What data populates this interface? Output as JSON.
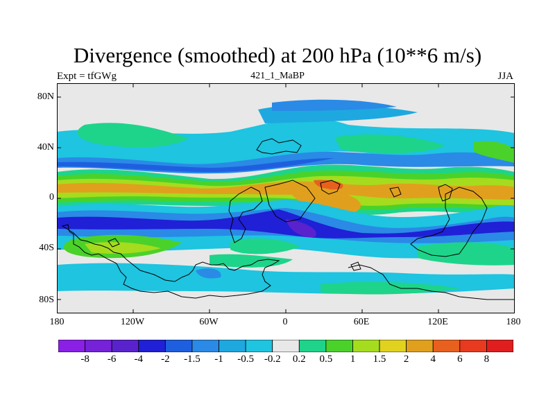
{
  "title": "Divergence (smoothed) at 200 hPa (10**6 m/s)",
  "subtitle_left": "Expt = tfGWg",
  "subtitle_center": "421_1_MaBP",
  "subtitle_right": "JJA",
  "lat_labels": [
    "80N",
    "40N",
    "0",
    "40S",
    "80S"
  ],
  "lon_labels": [
    "180",
    "120W",
    "60W",
    "0",
    "60E",
    "120E",
    "180"
  ],
  "colorbar": {
    "labels": [
      "-8",
      "-6",
      "-4",
      "-2",
      "-1.5",
      "-1",
      "-0.5",
      "-0.2",
      "0.2",
      "0.5",
      "1",
      "1.5",
      "2",
      "4",
      "6",
      "8"
    ],
    "colors": [
      "#8a1fe6",
      "#7522d8",
      "#5a22cc",
      "#2020d6",
      "#1e5fe0",
      "#2a8ae6",
      "#1ea8e0",
      "#1ec4e0",
      "#e8e8e8",
      "#1ed48a",
      "#4ad22a",
      "#a6dc1e",
      "#e0d21e",
      "#e0a01e",
      "#e8601e",
      "#e83a1e",
      "#e01e1e"
    ]
  },
  "palette": {
    "neg_strong": "#2020d6",
    "neg_mid": "#2a8ae6",
    "neg_weak": "#1ec4e0",
    "neutral": "#e8e8e8",
    "pos_weak": "#1ed48a",
    "pos_mid": "#4ad22a",
    "pos_strong": "#e0a01e",
    "pos_max": "#e8601e"
  }
}
